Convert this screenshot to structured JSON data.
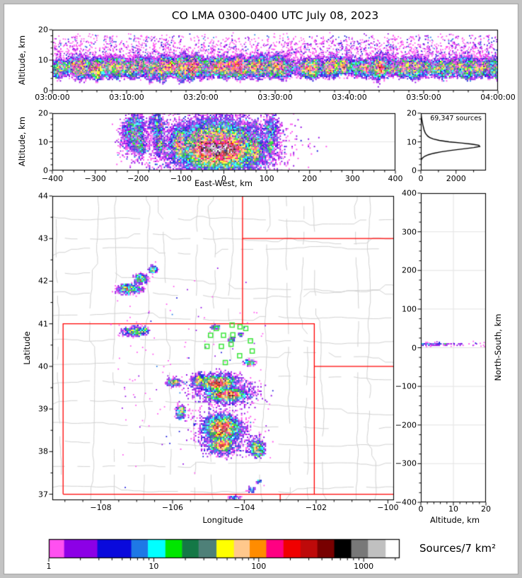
{
  "title": "CO LMA 0300-0400 UTC July 08, 2023",
  "colorbar": {
    "label": "Sources/7 km²",
    "tick_labels": [
      "1",
      "10",
      "100",
      "1000"
    ],
    "tick_values": [
      1,
      10,
      100,
      1000
    ],
    "max_value": 2200,
    "segment_bounds": [
      1,
      1.4,
      2.9,
      6.1,
      8.8,
      12.9,
      18.6,
      26.7,
      39.6,
      58,
      82,
      118,
      172,
      250,
      362,
      524,
      760,
      1100,
      1620
    ],
    "segment_colors": [
      "#ff50f0",
      "#8c00e6",
      "#0a0adc",
      "#1e78e6",
      "#00ffff",
      "#00e600",
      "#147846",
      "#4e8078",
      "#ffff00",
      "#ffc88c",
      "#ff8c00",
      "#ff0082",
      "#f00000",
      "#be0a0a",
      "#780000",
      "#000000",
      "#787878",
      "#c0c0c0",
      "#ffffff"
    ]
  },
  "style": {
    "state_border_color": "#ff0000",
    "county_color": "#d2d2d2",
    "station_color": "#3ce63c",
    "grid_color": "#e3e3e3",
    "frame_outer": "#c3c3c3",
    "frame_line": "#9c9c9c",
    "curve_color": "#000000"
  },
  "panels": {
    "time_height": {
      "ylabel": "Altitude, km",
      "ytick_labels": [
        "0",
        "10",
        "20"
      ],
      "ytick_values": [
        0,
        10,
        20
      ],
      "xtick_labels": [
        "03:00:00",
        "03:10:00",
        "03:20:00",
        "03:30:00",
        "03:40:00",
        "03:50:00",
        "04:00:00"
      ],
      "xtick_values": [
        0,
        10,
        20,
        30,
        40,
        50,
        60
      ],
      "x_range": [
        0,
        60
      ],
      "y_range": [
        0,
        20
      ]
    },
    "ew": {
      "ylabel": "Altitude, km",
      "xlabel": "East-West, km",
      "xtick_labels": [
        "−400",
        "−300",
        "−200",
        "−100",
        "0",
        "100",
        "200",
        "300",
        "400"
      ],
      "xtick_values": [
        -400,
        -300,
        -200,
        -100,
        0,
        100,
        200,
        300,
        400
      ],
      "ytick_labels": [
        "0",
        "10",
        "20"
      ],
      "ytick_values": [
        0,
        10,
        20
      ],
      "x_range": [
        -400,
        400
      ],
      "y_range": [
        0,
        20
      ]
    },
    "hist": {
      "note": "69,347 sources",
      "xtick_labels": [
        "0",
        "2000"
      ],
      "xtick_values": [
        0,
        2000
      ],
      "ytick_labels": [
        "0",
        "10",
        "20"
      ],
      "ytick_values": [
        0,
        10,
        20
      ],
      "x_range": [
        0,
        3700
      ],
      "y_range": [
        0,
        20
      ]
    },
    "map": {
      "xlabel": "Longitude",
      "ylabel": "Latitude",
      "xtick_labels": [
        "−108",
        "−106",
        "−104",
        "−102",
        "−100"
      ],
      "xtick_values": [
        -108,
        -106,
        -104,
        -102,
        -100
      ],
      "ytick_labels": [
        "37",
        "38",
        "39",
        "40",
        "41",
        "42",
        "43",
        "44"
      ],
      "ytick_values": [
        37,
        38,
        39,
        40,
        41,
        42,
        43,
        44
      ],
      "lon_range": [
        -109.35,
        -99.83
      ],
      "lat_range": [
        36.86,
        44.0
      ]
    },
    "ns": {
      "ylabel": "North-South, km",
      "xlabel": "Altitude, km",
      "ytick_labels": [
        "−400",
        "−300",
        "−200",
        "−100",
        "0",
        "100",
        "200",
        "300",
        "400"
      ],
      "ytick_values": [
        -400,
        -300,
        -200,
        -100,
        0,
        100,
        200,
        300,
        400
      ],
      "xtick_labels": [
        "0",
        "10",
        "20"
      ],
      "xtick_values": [
        0,
        10,
        20
      ],
      "x_range": [
        0,
        20
      ],
      "y_range": [
        -400,
        400
      ]
    }
  },
  "chart_data": {
    "type": "scatter",
    "description": "VHF lightning source density; clusters are [center_x, center_y, sigma_x, sigma_y, n_sources] in panel data units; colors follow colorbar Sources/7 km2 log scale.",
    "total_sources": 69347,
    "time_band": {
      "t_range": [
        0,
        60
      ],
      "columns": 120,
      "alt_center": 7.6,
      "alt_sigma": 1.05,
      "jitter": 0.75,
      "seed": 11,
      "profile": [
        300,
        500,
        750,
        700,
        650,
        800,
        950,
        1050,
        900,
        850,
        700,
        550,
        280,
        330,
        380,
        420,
        400,
        380,
        420,
        450,
        430,
        460,
        550,
        650
      ],
      "streaks": {
        "count": 80,
        "alt_range": [
          4,
          18.2
        ]
      },
      "sprinkle": {
        "n": 3000,
        "x": [
          0,
          60
        ],
        "y": [
          3.5,
          19.5
        ]
      }
    },
    "ew_clusters": [
      [
        -45,
        7.6,
        6,
        1.1,
        26000
      ],
      [
        -27,
        7.9,
        5,
        1.0,
        22000
      ],
      [
        -11,
        7.4,
        5,
        0.95,
        30000
      ],
      [
        5,
        7.7,
        5,
        1.0,
        21000
      ],
      [
        23,
        7.4,
        6,
        1.1,
        17000
      ],
      [
        -14,
        7.6,
        40,
        2.7,
        26000
      ],
      [
        -12,
        9.5,
        42,
        4,
        8000
      ],
      [
        -12,
        12.5,
        30,
        2.2,
        2600
      ],
      [
        -16,
        4.2,
        32,
        1.3,
        3200
      ],
      [
        -14,
        2.8,
        25,
        0.9,
        900
      ],
      [
        -207,
        11.5,
        9,
        2.6,
        800
      ],
      [
        -206,
        15.5,
        10,
        2.2,
        650
      ],
      [
        -196,
        8.6,
        6,
        1.4,
        550
      ],
      [
        -225,
        13,
        8,
        3,
        350
      ],
      [
        -152,
        12.5,
        5,
        2.8,
        600
      ],
      [
        -149,
        8.7,
        4,
        1.2,
        380
      ],
      [
        -160,
        16,
        8,
        2,
        250
      ],
      [
        -103,
        8.8,
        6,
        1.4,
        2400
      ],
      [
        -104,
        11.5,
        6,
        1.8,
        700
      ],
      [
        -103,
        6.5,
        5,
        0.8,
        400
      ],
      [
        74,
        7.8,
        5,
        1.6,
        1600
      ],
      [
        76,
        5.2,
        4,
        0.9,
        350
      ],
      [
        112,
        14,
        8,
        2.8,
        450
      ],
      [
        109,
        8.6,
        3,
        1.2,
        260
      ],
      [
        108,
        11,
        4,
        2,
        300
      ]
    ],
    "ew_sprinkle": {
      "n": 700,
      "x": [
        -250,
        135
      ],
      "y": [
        3,
        19
      ]
    },
    "ns_clusters": [
      [
        148,
        9.3,
        5,
        1.2,
        260
      ],
      [
        153,
        12,
        8,
        2,
        220
      ],
      [
        150,
        15.5,
        20,
        2,
        160
      ],
      [
        172,
        10,
        9,
        2.2,
        300
      ],
      [
        186,
        11.5,
        7,
        2.2,
        260
      ],
      [
        205,
        10.5,
        7,
        2,
        260
      ],
      [
        212,
        14,
        10,
        2.5,
        120
      ],
      [
        165,
        17.5,
        25,
        1.5,
        90
      ],
      [
        38,
        9.5,
        6,
        1.2,
        420
      ],
      [
        48,
        9.8,
        5,
        1.5,
        300
      ],
      [
        30,
        9.2,
        4,
        1,
        200
      ],
      [
        0,
        9.2,
        5,
        1.1,
        260
      ],
      [
        -95,
        7.8,
        7,
        1.05,
        27000
      ],
      [
        -95,
        8.2,
        16,
        2.3,
        8000
      ],
      [
        -93,
        11,
        12,
        2,
        1500
      ],
      [
        -97,
        4.8,
        10,
        1.2,
        1200
      ],
      [
        -125,
        7.7,
        7,
        1.15,
        14000
      ],
      [
        -125,
        8.5,
        14,
        2.4,
        4500
      ],
      [
        -126,
        12,
        10,
        2,
        900
      ],
      [
        -158,
        8.6,
        6,
        1.4,
        520
      ],
      [
        -162,
        11.5,
        8,
        2,
        300
      ],
      [
        -205,
        8.4,
        8,
        1.6,
        9000
      ],
      [
        -208,
        9.5,
        15,
        3,
        2800
      ],
      [
        -204,
        13.5,
        10,
        2,
        700
      ],
      [
        -212,
        5,
        8,
        1,
        600
      ],
      [
        -236,
        9.2,
        6,
        1.3,
        520
      ],
      [
        -239,
        12,
        7,
        2,
        260
      ],
      [
        -255,
        9.6,
        6,
        1.5,
        520
      ],
      [
        -257,
        12.5,
        8,
        1.8,
        240
      ]
    ],
    "ns_sprinkle": {
      "n": 550,
      "x": [
        -275,
        225
      ],
      "y": [
        3,
        19
      ]
    },
    "ns_sprinkle2": {
      "n": 70,
      "x": [
        -395,
        -315
      ],
      "y": [
        12,
        19.5
      ]
    },
    "map_clusters": [
      [
        -104.73,
        39.62,
        0.16,
        0.05,
        8000
      ],
      [
        -104.88,
        39.6,
        0.05,
        0.028,
        2400
      ],
      [
        -104.7,
        39.64,
        0.06,
        0.025,
        2400
      ],
      [
        -104.55,
        39.66,
        0.045,
        0.025,
        1100
      ],
      [
        -104.78,
        39.53,
        0.08,
        0.03,
        900
      ],
      [
        -104.47,
        39.33,
        0.2,
        0.05,
        6500
      ],
      [
        -104.63,
        39.34,
        0.05,
        0.03,
        1900
      ],
      [
        -104.42,
        39.31,
        0.06,
        0.03,
        2100
      ],
      [
        -104.27,
        39.35,
        0.045,
        0.025,
        800
      ],
      [
        -104.62,
        38.55,
        0.2,
        0.12,
        8500
      ],
      [
        -104.75,
        38.58,
        0.06,
        0.04,
        2100
      ],
      [
        -104.55,
        38.52,
        0.06,
        0.04,
        2400
      ],
      [
        -104.6,
        38.65,
        0.05,
        0.03,
        1400
      ],
      [
        -104.47,
        38.62,
        0.04,
        0.03,
        900
      ],
      [
        -104.72,
        38.4,
        0.06,
        0.03,
        500
      ],
      [
        -104.63,
        38.15,
        0.11,
        0.06,
        3200
      ],
      [
        -104.66,
        38.13,
        0.05,
        0.035,
        1400
      ],
      [
        -104.5,
        38.2,
        0.05,
        0.03,
        500
      ],
      [
        -103.66,
        38.08,
        0.09,
        0.07,
        1100
      ],
      [
        -103.68,
        38.11,
        0.04,
        0.03,
        380
      ],
      [
        -103.55,
        37.98,
        0.05,
        0.04,
        150
      ],
      [
        -105.97,
        39.62,
        0.07,
        0.03,
        550
      ],
      [
        -105.24,
        39.7,
        0.05,
        0.035,
        650
      ],
      [
        -105.3,
        39.63,
        0.04,
        0.03,
        300
      ],
      [
        -105.76,
        38.97,
        0.05,
        0.04,
        600
      ],
      [
        -105.8,
        38.85,
        0.05,
        0.05,
        120
      ],
      [
        -106.54,
        42.27,
        0.05,
        0.04,
        280
      ],
      [
        -106.88,
        42.06,
        0.08,
        0.05,
        420
      ],
      [
        -107.2,
        41.81,
        0.14,
        0.05,
        850
      ],
      [
        -107.35,
        41.87,
        0.06,
        0.03,
        150
      ],
      [
        -107.03,
        40.82,
        0.15,
        0.05,
        750
      ],
      [
        -106.8,
        40.86,
        0.05,
        0.03,
        150
      ],
      [
        -103.85,
        40.08,
        0.06,
        0.03,
        280
      ],
      [
        -104.8,
        40.92,
        0.06,
        0.022,
        140
      ],
      [
        -104.35,
        40.62,
        0.04,
        0.025,
        110
      ],
      [
        -104.1,
        40.75,
        0.03,
        0.02,
        60
      ],
      [
        -103.8,
        37.1,
        0.06,
        0.04,
        80
      ],
      [
        -104.28,
        36.92,
        0.1,
        0.03,
        55
      ],
      [
        -103.6,
        37.3,
        0.04,
        0.03,
        30
      ]
    ],
    "map_sprinkle": {
      "n": 150,
      "x": [
        -107.6,
        -103.2
      ],
      "y": [
        37.0,
        42.4
      ]
    },
    "stations": [
      [
        -104.34,
        40.97
      ],
      [
        -104.12,
        40.93
      ],
      [
        -103.96,
        40.89
      ],
      [
        -104.78,
        40.89
      ],
      [
        -104.32,
        40.74
      ],
      [
        -104.58,
        40.73
      ],
      [
        -104.94,
        40.73
      ],
      [
        -103.83,
        40.6
      ],
      [
        -104.37,
        40.52
      ],
      [
        -104.64,
        40.47
      ],
      [
        -105.04,
        40.47
      ],
      [
        -103.78,
        40.36
      ],
      [
        -104.13,
        40.25
      ],
      [
        -104.53,
        40.09
      ]
    ],
    "state_borders": [
      [
        [
          -109.05,
          37
        ],
        [
          -109.05,
          41
        ],
        [
          -102.05,
          41
        ],
        [
          -102.05,
          37
        ],
        [
          -109.05,
          37
        ]
      ],
      [
        [
          -104.05,
          41
        ],
        [
          -104.05,
          44.0
        ]
      ],
      [
        [
          -104.05,
          43
        ],
        [
          -99.83,
          43
        ]
      ],
      [
        [
          -102.05,
          40
        ],
        [
          -99.83,
          40
        ]
      ],
      [
        [
          -102.05,
          37
        ],
        [
          -99.83,
          37
        ]
      ],
      [
        [
          -103.0,
          37
        ],
        [
          -103.0,
          36.86
        ]
      ]
    ],
    "county_seed": 7,
    "hist_profile": [
      [
        0,
        0
      ],
      [
        3,
        0
      ],
      [
        3.6,
        15
      ],
      [
        4,
        45
      ],
      [
        4.5,
        120
      ],
      [
        5,
        230
      ],
      [
        5.5,
        430
      ],
      [
        6,
        720
      ],
      [
        6.5,
        1150
      ],
      [
        7,
        1700
      ],
      [
        7.5,
        2350
      ],
      [
        8,
        3000
      ],
      [
        8.4,
        3350
      ],
      [
        8.8,
        3300
      ],
      [
        9.2,
        2900
      ],
      [
        9.6,
        2300
      ],
      [
        10,
        1600
      ],
      [
        10.5,
        1050
      ],
      [
        11,
        700
      ],
      [
        11.5,
        500
      ],
      [
        12,
        390
      ],
      [
        13,
        260
      ],
      [
        14,
        190
      ],
      [
        15,
        150
      ],
      [
        16,
        110
      ],
      [
        17,
        80
      ],
      [
        18,
        50
      ],
      [
        19,
        25
      ],
      [
        20,
        10
      ]
    ]
  }
}
